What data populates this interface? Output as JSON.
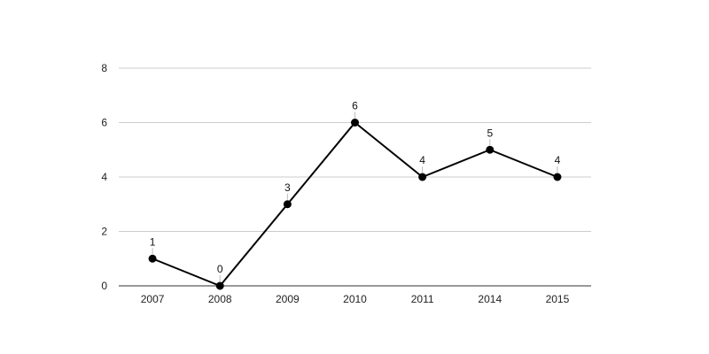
{
  "chart_data": {
    "type": "line",
    "title": "",
    "xlabel": "",
    "ylabel": "",
    "categories": [
      "2007",
      "2008",
      "2009",
      "2010",
      "2011",
      "2014",
      "2015"
    ],
    "series": [
      {
        "values": [
          1,
          0,
          3,
          6,
          4,
          5,
          4
        ]
      }
    ],
    "ylim": [
      0,
      8
    ],
    "yticks": [
      0,
      2,
      4,
      6,
      8
    ],
    "grid": true,
    "legend": "none",
    "data_labels": true
  },
  "colors": {
    "line": "#000000",
    "marker": "#000000",
    "grid": "#cccccc",
    "axis": "#333333",
    "label_leader": "#bbbbbb"
  }
}
